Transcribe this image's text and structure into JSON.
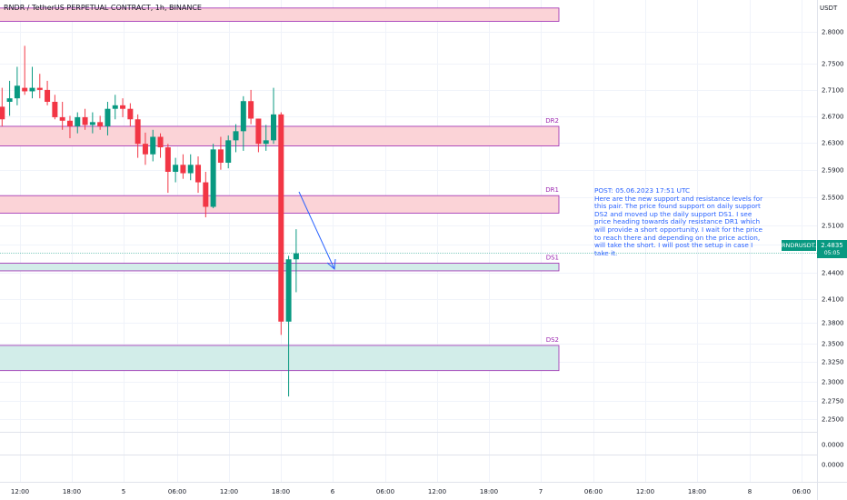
{
  "header": {
    "title": "RNDR / TetherUS PERPETUAL CONTRACT, 1h, BINANCE",
    "currency": "USDT"
  },
  "note": {
    "text": "POST: 05.06.2023 17:51 UTC\nHere are the new support and resistance levels for this pair. The price found support on daily support DS2 and moved up the daily support DS1. I see price heading towards daily resistance DR1 which will provide a short opportunity. I wait for the price to reach there and depending on the price action, will take the short. I will post the setup in case I take it."
  },
  "price_tag": {
    "symbol": "RNDRUSDT.P",
    "price": "2.4835",
    "countdown": "05:05"
  },
  "colors": {
    "up": "#089981",
    "down": "#f23645",
    "resistance_fill": "#fbd3d7",
    "support_fill": "#d2ede9",
    "zone_border": "#9c27b0",
    "arrow": "#2962ff"
  },
  "chart_data": {
    "type": "candlestick",
    "ylim": [
      2.247,
      2.834
    ],
    "y_ticks": [
      "2.8000",
      "2.7500",
      "2.7100",
      "2.6700",
      "2.6300",
      "2.5900",
      "2.5500",
      "2.5100",
      "2.4800",
      "2.4400",
      "2.4100",
      "2.3800",
      "2.3500",
      "2.3250",
      "2.3000",
      "2.2750",
      "2.2500"
    ],
    "y_ticks_lower": [
      "0.0000",
      "0.0000"
    ],
    "x_ticks": [
      "12:00",
      "18:00",
      "5",
      "06:00",
      "12:00",
      "18:00",
      "6",
      "06:00",
      "12:00",
      "18:00",
      "7",
      "06:00",
      "12:00",
      "18:00",
      "8",
      "06:00"
    ],
    "zones": [
      {
        "label": "",
        "type": "resistance",
        "top": 2.834,
        "bottom": 2.815
      },
      {
        "label": "DR2",
        "type": "resistance",
        "top": 2.665,
        "bottom": 2.637
      },
      {
        "label": "DR1",
        "type": "resistance",
        "top": 2.566,
        "bottom": 2.541
      },
      {
        "label": "DS1",
        "type": "support",
        "top": 2.4695,
        "bottom": 2.4585
      },
      {
        "label": "DS2",
        "type": "support",
        "top": 2.352,
        "bottom": 2.316
      }
    ],
    "current_price": 2.4835,
    "candles": [
      {
        "o": 2.693,
        "h": 2.72,
        "l": 2.665,
        "c": 2.675
      },
      {
        "o": 2.7,
        "h": 2.73,
        "l": 2.68,
        "c": 2.705
      },
      {
        "o": 2.705,
        "h": 2.75,
        "l": 2.695,
        "c": 2.723
      },
      {
        "o": 2.72,
        "h": 2.78,
        "l": 2.71,
        "c": 2.715
      },
      {
        "o": 2.715,
        "h": 2.75,
        "l": 2.705,
        "c": 2.72
      },
      {
        "o": 2.72,
        "h": 2.74,
        "l": 2.705,
        "c": 2.717
      },
      {
        "o": 2.717,
        "h": 2.73,
        "l": 2.695,
        "c": 2.7
      },
      {
        "o": 2.7,
        "h": 2.71,
        "l": 2.675,
        "c": 2.678
      },
      {
        "o": 2.678,
        "h": 2.7,
        "l": 2.66,
        "c": 2.673
      },
      {
        "o": 2.673,
        "h": 2.68,
        "l": 2.648,
        "c": 2.665
      },
      {
        "o": 2.665,
        "h": 2.685,
        "l": 2.655,
        "c": 2.678
      },
      {
        "o": 2.678,
        "h": 2.69,
        "l": 2.66,
        "c": 2.667
      },
      {
        "o": 2.667,
        "h": 2.685,
        "l": 2.655,
        "c": 2.671
      },
      {
        "o": 2.671,
        "h": 2.68,
        "l": 2.66,
        "c": 2.665
      },
      {
        "o": 2.665,
        "h": 2.7,
        "l": 2.652,
        "c": 2.69
      },
      {
        "o": 2.69,
        "h": 2.71,
        "l": 2.675,
        "c": 2.695
      },
      {
        "o": 2.695,
        "h": 2.705,
        "l": 2.678,
        "c": 2.69
      },
      {
        "o": 2.69,
        "h": 2.698,
        "l": 2.665,
        "c": 2.675
      },
      {
        "o": 2.675,
        "h": 2.682,
        "l": 2.62,
        "c": 2.64
      },
      {
        "o": 2.64,
        "h": 2.656,
        "l": 2.61,
        "c": 2.625
      },
      {
        "o": 2.625,
        "h": 2.66,
        "l": 2.615,
        "c": 2.65
      },
      {
        "o": 2.65,
        "h": 2.655,
        "l": 2.62,
        "c": 2.635
      },
      {
        "o": 2.635,
        "h": 2.64,
        "l": 2.57,
        "c": 2.6
      },
      {
        "o": 2.6,
        "h": 2.62,
        "l": 2.585,
        "c": 2.61
      },
      {
        "o": 2.61,
        "h": 2.625,
        "l": 2.59,
        "c": 2.598
      },
      {
        "o": 2.598,
        "h": 2.625,
        "l": 2.588,
        "c": 2.61
      },
      {
        "o": 2.61,
        "h": 2.622,
        "l": 2.57,
        "c": 2.585
      },
      {
        "o": 2.585,
        "h": 2.6,
        "l": 2.535,
        "c": 2.55
      },
      {
        "o": 2.55,
        "h": 2.64,
        "l": 2.548,
        "c": 2.632
      },
      {
        "o": 2.632,
        "h": 2.65,
        "l": 2.603,
        "c": 2.613
      },
      {
        "o": 2.613,
        "h": 2.652,
        "l": 2.605,
        "c": 2.645
      },
      {
        "o": 2.645,
        "h": 2.668,
        "l": 2.628,
        "c": 2.658
      },
      {
        "o": 2.658,
        "h": 2.708,
        "l": 2.63,
        "c": 2.701
      },
      {
        "o": 2.701,
        "h": 2.717,
        "l": 2.668,
        "c": 2.676
      },
      {
        "o": 2.676,
        "h": 2.676,
        "l": 2.628,
        "c": 2.64
      },
      {
        "o": 2.64,
        "h": 2.667,
        "l": 2.63,
        "c": 2.645
      },
      {
        "o": 2.645,
        "h": 2.72,
        "l": 2.64,
        "c": 2.682
      },
      {
        "o": 2.682,
        "h": 2.685,
        "l": 2.367,
        "c": 2.386
      },
      {
        "o": 2.386,
        "h": 2.48,
        "l": 2.279,
        "c": 2.475
      },
      {
        "o": 2.475,
        "h": 2.518,
        "l": 2.428,
        "c": 2.4835
      }
    ]
  }
}
